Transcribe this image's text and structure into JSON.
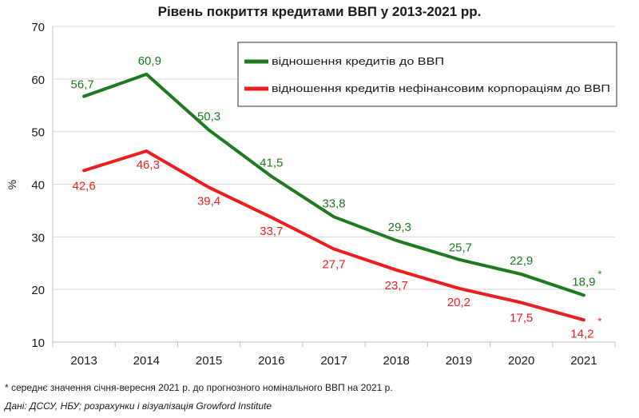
{
  "chart_data": {
    "type": "line",
    "title": "Рівень покриття кредитами ВВП у 2013-2021 рр.",
    "ylabel": "%",
    "xlabel": "",
    "categories": [
      "2013",
      "2014",
      "2015",
      "2016",
      "2017",
      "2018",
      "2019",
      "2020",
      "2021"
    ],
    "ylim": [
      10,
      70
    ],
    "yticks": [
      10,
      20,
      30,
      40,
      50,
      60,
      70
    ],
    "grid": "horizontal",
    "legend_position": "top-right",
    "series": [
      {
        "name": "відношення кредитів до ВВП",
        "color": "#1e7a1e",
        "values": [
          56.7,
          60.9,
          50.3,
          41.5,
          33.8,
          29.3,
          25.7,
          22.9,
          18.9
        ],
        "labels": [
          "56,7",
          "60,9",
          "50,3",
          "41,5",
          "33,8",
          "29,3",
          "25,7",
          "22,9",
          "18,9"
        ],
        "last_marker": "*"
      },
      {
        "name": "відношення кредитів нефінансовим корпораціям до ВВП",
        "color": "#ee1c1c",
        "values": [
          42.6,
          46.3,
          39.4,
          33.7,
          27.7,
          23.7,
          20.2,
          17.5,
          14.2
        ],
        "labels": [
          "42,6",
          "46,3",
          "39,4",
          "33,7",
          "27,7",
          "23,7",
          "20,2",
          "17,5",
          "14,2"
        ],
        "last_marker": "*"
      }
    ]
  },
  "footnote": "* середнє значення січня-вересня 2021 р. до прогнозного номінального ВВП на 2021 р.",
  "source": "Дані: ДССУ, НБУ; розрахунки і візуалізація Growford Institute"
}
